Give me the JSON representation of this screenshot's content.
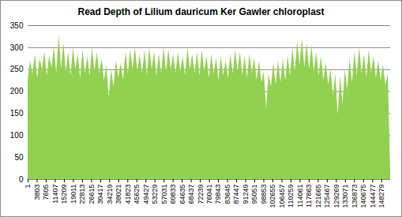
{
  "chart_data": {
    "type": "area",
    "title": "Read Depth of Lilium dauricum Ker Gawler chloroplast",
    "x": [
      1,
      1000,
      2000,
      3000,
      4000,
      5000,
      6000,
      7000,
      8000,
      9000,
      10000,
      11000,
      12000,
      13000,
      14000,
      15000,
      16000,
      17000,
      18000,
      19000,
      20000,
      21000,
      22000,
      23000,
      24000,
      25000,
      26000,
      27000,
      28000,
      29000,
      30000,
      31000,
      32000,
      33000,
      34000,
      35000,
      36000,
      37000,
      38000,
      39000,
      40000,
      41000,
      42000,
      43000,
      44000,
      45000,
      46000,
      47000,
      48000,
      49000,
      50000,
      51000,
      52000,
      53000,
      54000,
      55000,
      56000,
      57000,
      58000,
      59000,
      60000,
      61000,
      62000,
      63000,
      64000,
      65000,
      66000,
      67000,
      68000,
      69000,
      70000,
      71000,
      72000,
      73000,
      74000,
      75000,
      76000,
      77000,
      78000,
      79000,
      80000,
      81000,
      82000,
      83000,
      84000,
      85000,
      86000,
      87000,
      88000,
      89000,
      90000,
      91000,
      92000,
      93000,
      94000,
      95000,
      96000,
      97000,
      98000,
      99000,
      100000,
      101000,
      102000,
      103000,
      104000,
      105000,
      106000,
      107000,
      108000,
      109000,
      110000,
      111000,
      112000,
      113000,
      114000,
      115000,
      116000,
      117000,
      118000,
      119000,
      120000,
      121000,
      122000,
      123000,
      124000,
      125000,
      126000,
      127000,
      128000,
      129000,
      130000,
      131000,
      132000,
      133000,
      134000,
      135000,
      136000,
      137000,
      138000,
      139000,
      140000,
      141000,
      142000,
      143000,
      144000,
      145000,
      146000,
      147000,
      148000,
      149000,
      150000,
      151000,
      152000
    ],
    "values": [
      225,
      270,
      240,
      285,
      230,
      275,
      250,
      290,
      235,
      280,
      255,
      300,
      240,
      330,
      250,
      310,
      245,
      290,
      235,
      300,
      250,
      285,
      230,
      295,
      240,
      280,
      235,
      300,
      245,
      290,
      240,
      275,
      225,
      260,
      185,
      250,
      210,
      270,
      230,
      265,
      225,
      290,
      240,
      295,
      250,
      300,
      245,
      285,
      240,
      295,
      235,
      300,
      250,
      290,
      235,
      285,
      240,
      300,
      245,
      295,
      250,
      285,
      240,
      290,
      245,
      280,
      235,
      300,
      250,
      285,
      240,
      290,
      235,
      295,
      245,
      280,
      230,
      285,
      240,
      275,
      225,
      280,
      235,
      270,
      230,
      285,
      240,
      295,
      245,
      290,
      235,
      280,
      230,
      285,
      240,
      275,
      225,
      270,
      220,
      245,
      160,
      240,
      210,
      265,
      215,
      270,
      220,
      275,
      225,
      280,
      235,
      300,
      245,
      315,
      260,
      320,
      255,
      310,
      250,
      305,
      245,
      290,
      235,
      280,
      225,
      265,
      215,
      250,
      190,
      240,
      145,
      235,
      170,
      250,
      205,
      275,
      220,
      290,
      235,
      300,
      240,
      285,
      230,
      295,
      240,
      280,
      230,
      270,
      225,
      260,
      215,
      240,
      20
    ],
    "color": "#92d050",
    "xlim": [
      1,
      152000
    ],
    "ylim": [
      0,
      350
    ],
    "xticks": [
      1,
      3803,
      7605,
      11407,
      15209,
      19011,
      22813,
      26615,
      30417,
      34219,
      38021,
      41823,
      45625,
      49427,
      53229,
      57031,
      60833,
      64635,
      68437,
      72239,
      76041,
      79843,
      83645,
      87447,
      91249,
      95051,
      98853,
      102655,
      106457,
      110259,
      114061,
      117863,
      121665,
      125467,
      129269,
      133071,
      136873,
      140675,
      144477,
      148279
    ],
    "yticks": [
      0,
      50,
      100,
      150,
      200,
      250,
      300,
      350
    ],
    "grid": true
  }
}
